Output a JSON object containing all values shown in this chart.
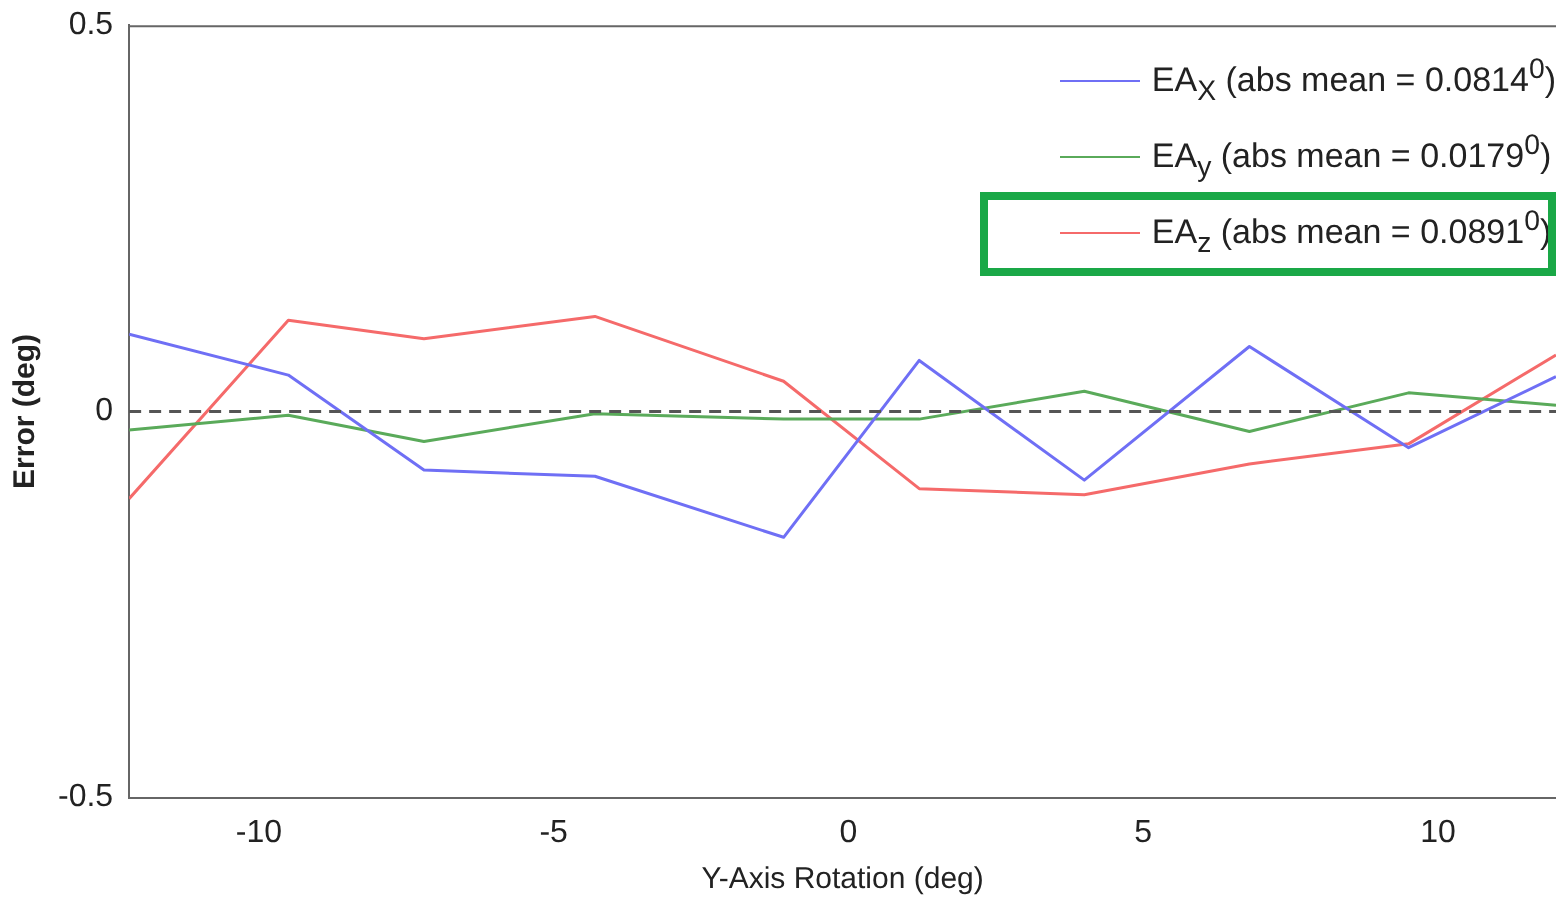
{
  "chart_data": {
    "type": "line",
    "xlabel": "Y-Axis Rotation (deg)",
    "ylabel": "Error (deg)",
    "xlim": [
      -12.2,
      12
    ],
    "xticks": [
      -10,
      -5,
      0,
      5,
      10
    ],
    "ylim": [
      -0.5,
      0.5
    ],
    "yticks": [
      -0.5,
      0,
      0.5
    ],
    "grid": false,
    "legend": "top right",
    "marker": "none",
    "x": [
      -12.2,
      -9.5,
      -7.2,
      -4.3,
      -1.1,
      1.2,
      4,
      6.8,
      9.5,
      12
    ],
    "series": [
      {
        "name": "EA$_{X}$ (abs mean = 0.0814$^{0}$)",
        "color": "#6f6ff5",
        "values": [
          0.1,
          0.047,
          -0.076,
          -0.084,
          -0.163,
          0.066,
          -0.089,
          0.084,
          -0.047,
          0.045
        ]
      },
      {
        "name": "EA$_{y}$ (abs mean = 0.0179$^{0}$)",
        "color": "#5aaa5a",
        "values": [
          -0.024,
          -0.005,
          -0.039,
          -0.003,
          -0.01,
          -0.01,
          0.026,
          -0.026,
          0.024,
          0.008
        ]
      },
      {
        "name": "EA$_{z}$ (abs mean = 0.0891$^{0}$)",
        "color": "#f56a6a",
        "values": [
          -0.113,
          0.118,
          0.094,
          0.123,
          0.039,
          -0.1,
          -0.108,
          -0.068,
          -0.042,
          0.073
        ]
      }
    ],
    "ref_lines": [
      {
        "axis": "y",
        "value": 0,
        "color": "#555555",
        "line_style": "dashed"
      }
    ]
  }
}
